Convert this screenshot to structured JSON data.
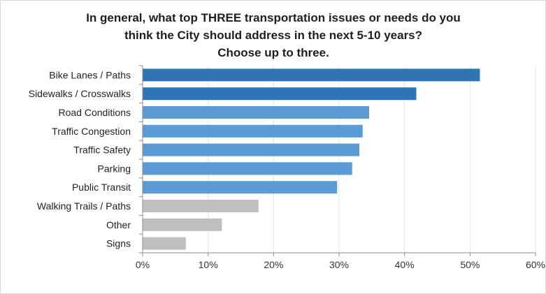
{
  "chart_data": {
    "type": "bar",
    "orientation": "horizontal",
    "title_lines": [
      "In general, what top THREE transportation issues or needs do you",
      "think the City should address in the next 5-10 years?",
      "Choose up to three."
    ],
    "categories": [
      "Bike Lanes / Paths",
      "Sidewalks / Crosswalks",
      "Road Conditions",
      "Traffic Congestion",
      "Traffic Safety",
      "Parking",
      "Public Transit",
      "Walking Trails / Paths",
      "Other",
      "Signs"
    ],
    "values": [
      51.5,
      41.8,
      34.6,
      33.6,
      33.1,
      32.0,
      29.7,
      17.7,
      12.1,
      6.6
    ],
    "bar_colors": [
      "#2e75b6",
      "#2e75b6",
      "#5b9bd5",
      "#5b9bd5",
      "#5b9bd5",
      "#5b9bd5",
      "#5b9bd5",
      "#bfbfbf",
      "#bfbfbf",
      "#bfbfbf"
    ],
    "xlim": [
      0,
      60
    ],
    "xticks": [
      0,
      10,
      20,
      30,
      40,
      50,
      60
    ],
    "xtick_labels": [
      "0%",
      "10%",
      "20%",
      "30%",
      "40%",
      "50%",
      "60%"
    ],
    "grid": "vertical",
    "xlabel": "",
    "ylabel": ""
  }
}
